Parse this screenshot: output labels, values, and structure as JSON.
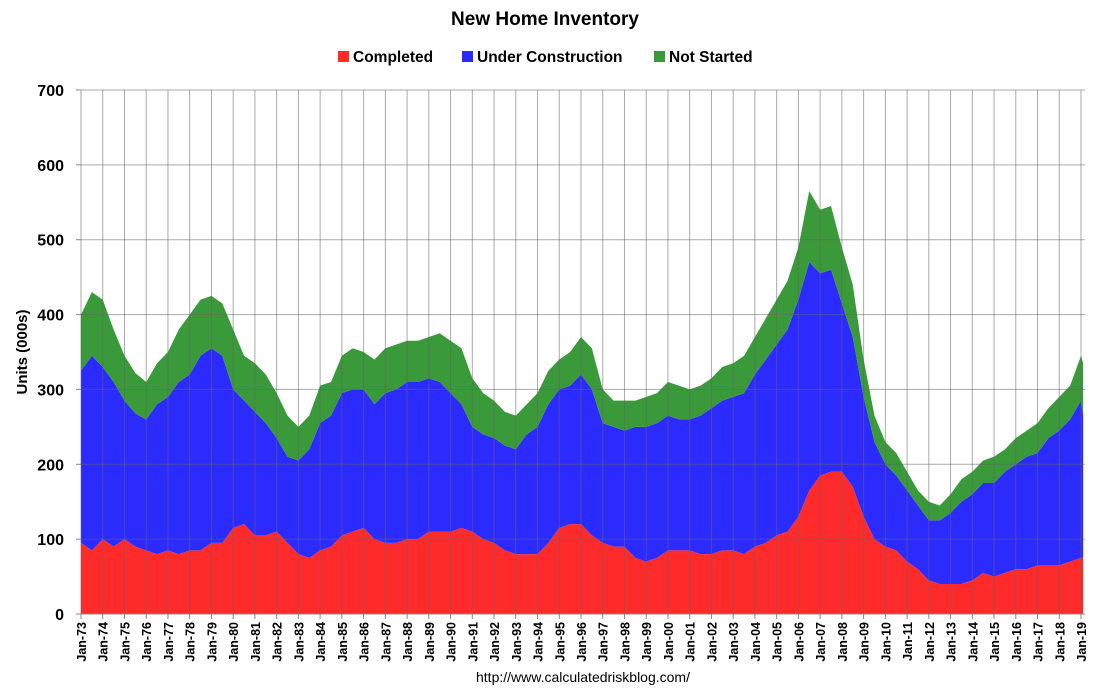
{
  "chart_data": {
    "type": "area",
    "stacked": true,
    "title": "New Home Inventory",
    "xlabel": "",
    "ylabel": "Units (000s)",
    "ylim": [
      0,
      700
    ],
    "yticks": [
      0,
      100,
      200,
      300,
      400,
      500,
      600,
      700
    ],
    "xlim": [
      1973,
      2019.15
    ],
    "xtick_labels": [
      "Jan-73",
      "Jan-74",
      "Jan-75",
      "Jan-76",
      "Jan-77",
      "Jan-78",
      "Jan-79",
      "Jan-80",
      "Jan-81",
      "Jan-82",
      "Jan-83",
      "Jan-84",
      "Jan-85",
      "Jan-86",
      "Jan-87",
      "Jan-88",
      "Jan-89",
      "Jan-90",
      "Jan-91",
      "Jan-92",
      "Jan-93",
      "Jan-94",
      "Jan-95",
      "Jan-96",
      "Jan-97",
      "Jan-98",
      "Jan-99",
      "Jan-00",
      "Jan-01",
      "Jan-02",
      "Jan-03",
      "Jan-04",
      "Jan-05",
      "Jan-06",
      "Jan-07",
      "Jan-08",
      "Jan-09",
      "Jan-10",
      "Jan-11",
      "Jan-12",
      "Jan-13",
      "Jan-14",
      "Jan-15",
      "Jan-16",
      "Jan-17",
      "Jan-18",
      "Jan-19"
    ],
    "grid": true,
    "legend_position": "top",
    "source_note": "http://www.calculatedriskblog.com/",
    "x": [
      1973,
      1973.5,
      1974,
      1974.5,
      1975,
      1975.5,
      1976,
      1976.5,
      1977,
      1977.5,
      1978,
      1978.5,
      1979,
      1979.5,
      1980,
      1980.5,
      1981,
      1981.5,
      1982,
      1982.5,
      1983,
      1983.5,
      1984,
      1984.5,
      1985,
      1985.5,
      1986,
      1986.5,
      1987,
      1987.5,
      1988,
      1988.5,
      1989,
      1989.5,
      1990,
      1990.5,
      1991,
      1991.5,
      1992,
      1992.5,
      1993,
      1993.5,
      1994,
      1994.5,
      1995,
      1995.5,
      1996,
      1996.5,
      1997,
      1997.5,
      1998,
      1998.5,
      1999,
      1999.5,
      2000,
      2000.5,
      2001,
      2001.5,
      2002,
      2002.5,
      2003,
      2003.5,
      2004,
      2004.5,
      2005,
      2005.5,
      2006,
      2006.5,
      2007,
      2007.5,
      2008,
      2008.5,
      2009,
      2009.5,
      2010,
      2010.5,
      2011,
      2011.5,
      2012,
      2012.5,
      2013,
      2013.5,
      2014,
      2014.5,
      2015,
      2015.5,
      2016,
      2016.5,
      2017,
      2017.5,
      2018,
      2018.5,
      2019,
      2019.1
    ],
    "series": [
      {
        "name": "Completed",
        "color": "#ff2b2b",
        "values": [
          95,
          85,
          100,
          90,
          100,
          90,
          85,
          80,
          85,
          80,
          85,
          85,
          95,
          95,
          115,
          120,
          105,
          105,
          110,
          95,
          80,
          75,
          85,
          90,
          105,
          110,
          115,
          100,
          95,
          95,
          100,
          100,
          110,
          110,
          110,
          115,
          110,
          100,
          95,
          85,
          80,
          80,
          80,
          95,
          115,
          120,
          120,
          105,
          95,
          90,
          90,
          75,
          70,
          75,
          85,
          85,
          85,
          80,
          80,
          85,
          85,
          80,
          90,
          95,
          105,
          110,
          130,
          165,
          185,
          190,
          190,
          170,
          130,
          100,
          90,
          85,
          70,
          60,
          45,
          40,
          40,
          40,
          45,
          55,
          50,
          55,
          60,
          60,
          65,
          65,
          65,
          70,
          75,
          75
        ]
      },
      {
        "name": "Under Construction",
        "color": "#2b2bff",
        "values": [
          230,
          260,
          230,
          220,
          185,
          178,
          175,
          200,
          205,
          230,
          235,
          260,
          260,
          250,
          185,
          165,
          165,
          150,
          125,
          115,
          125,
          145,
          170,
          175,
          190,
          190,
          185,
          180,
          200,
          205,
          210,
          210,
          205,
          200,
          185,
          165,
          140,
          140,
          140,
          140,
          140,
          160,
          170,
          185,
          185,
          185,
          200,
          195,
          160,
          160,
          155,
          175,
          180,
          180,
          180,
          175,
          175,
          185,
          195,
          200,
          205,
          215,
          230,
          245,
          255,
          270,
          290,
          305,
          270,
          270,
          225,
          200,
          160,
          130,
          110,
          100,
          95,
          85,
          80,
          85,
          95,
          110,
          115,
          120,
          125,
          135,
          140,
          150,
          150,
          170,
          180,
          190,
          210,
          190
        ]
      },
      {
        "name": "Not Started",
        "color": "#3a9a3a",
        "values": [
          75,
          85,
          90,
          70,
          60,
          54,
          50,
          55,
          60,
          70,
          80,
          75,
          70,
          70,
          80,
          60,
          65,
          65,
          60,
          55,
          45,
          45,
          50,
          45,
          50,
          55,
          50,
          60,
          60,
          60,
          55,
          55,
          55,
          65,
          70,
          75,
          65,
          55,
          50,
          45,
          45,
          40,
          45,
          45,
          40,
          45,
          50,
          55,
          45,
          35,
          40,
          35,
          40,
          40,
          45,
          45,
          40,
          40,
          40,
          45,
          45,
          50,
          50,
          55,
          60,
          65,
          70,
          95,
          85,
          85,
          75,
          70,
          50,
          35,
          30,
          30,
          25,
          20,
          25,
          20,
          25,
          30,
          30,
          30,
          35,
          30,
          35,
          35,
          40,
          40,
          45,
          45,
          60,
          70
        ]
      }
    ]
  }
}
